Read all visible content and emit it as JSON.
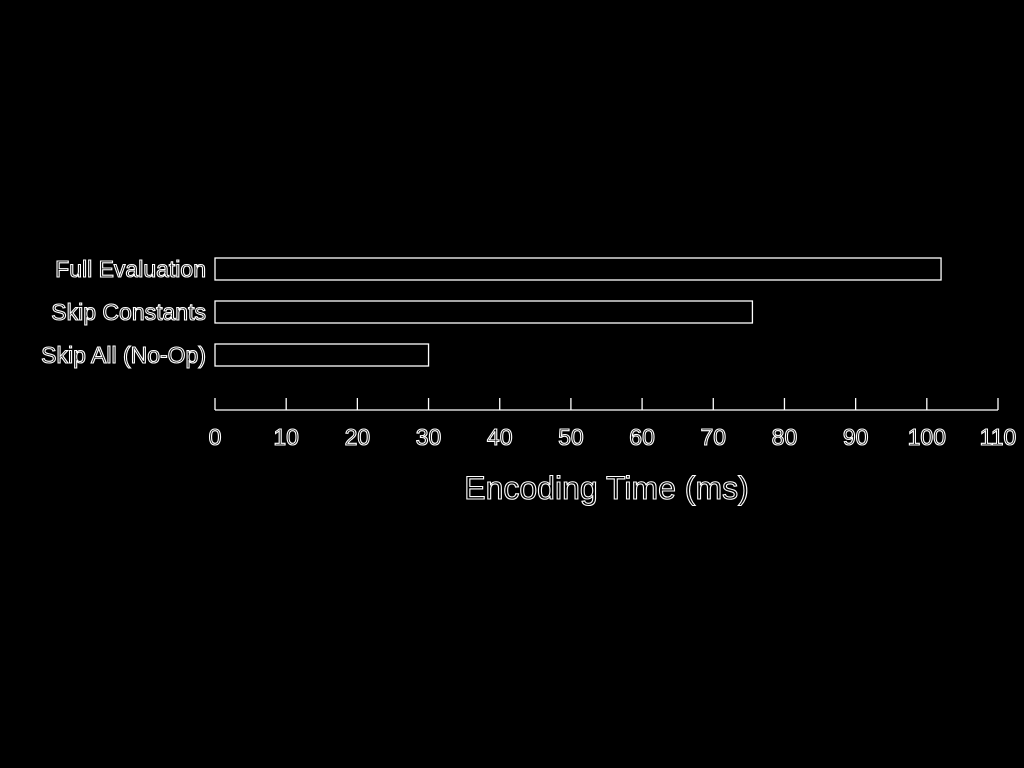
{
  "chart_data": {
    "type": "bar",
    "orientation": "horizontal",
    "categories": [
      "Full Evaluation",
      "Skip Constants",
      "Skip All (No-Op)"
    ],
    "values": [
      102,
      75.5,
      30
    ],
    "xlabel": "Encoding Time (ms)",
    "ylabel": "",
    "xlim": [
      0,
      110
    ],
    "xticks": [
      "0",
      "10",
      "20",
      "30",
      "40",
      "50",
      "60",
      "70",
      "80",
      "90",
      "100",
      "110"
    ],
    "grid": false,
    "colors": {
      "background": "#000000",
      "foreground": "#ffffff"
    }
  }
}
